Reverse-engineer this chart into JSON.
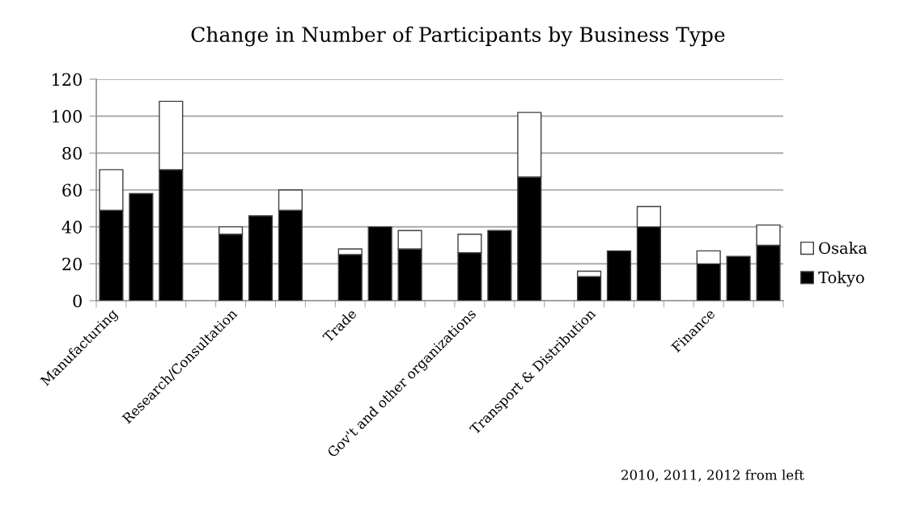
{
  "chart_data": {
    "type": "bar",
    "stacked": true,
    "title": "Change in Number of Participants by Business Type",
    "categories": [
      "Manufacturing",
      null,
      null,
      null,
      "Research/Consultation",
      null,
      null,
      null,
      "Trade",
      null,
      null,
      null,
      "Gov't and other organizations",
      null,
      null,
      null,
      "Transport & Distribution",
      null,
      null,
      null,
      "Finance",
      null,
      null
    ],
    "series": [
      {
        "name": "Tokyo",
        "color": "#000000",
        "values": [
          49,
          58,
          71,
          null,
          36,
          46,
          49,
          null,
          25,
          40,
          28,
          null,
          26,
          38,
          67,
          null,
          13,
          27,
          40,
          null,
          20,
          24,
          30
        ]
      },
      {
        "name": "Osaka",
        "color": "#ffffff",
        "values": [
          22,
          null,
          37,
          null,
          4,
          null,
          11,
          null,
          3,
          null,
          10,
          null,
          10,
          null,
          35,
          null,
          3,
          null,
          11,
          null,
          7,
          null,
          11
        ]
      }
    ],
    "ylim": [
      0,
      120
    ],
    "yticks": [
      0,
      20,
      40,
      60,
      80,
      100,
      120
    ],
    "grid": "y",
    "legend": "right",
    "annotations": [
      "2010, 2011, 2012 from left"
    ]
  }
}
